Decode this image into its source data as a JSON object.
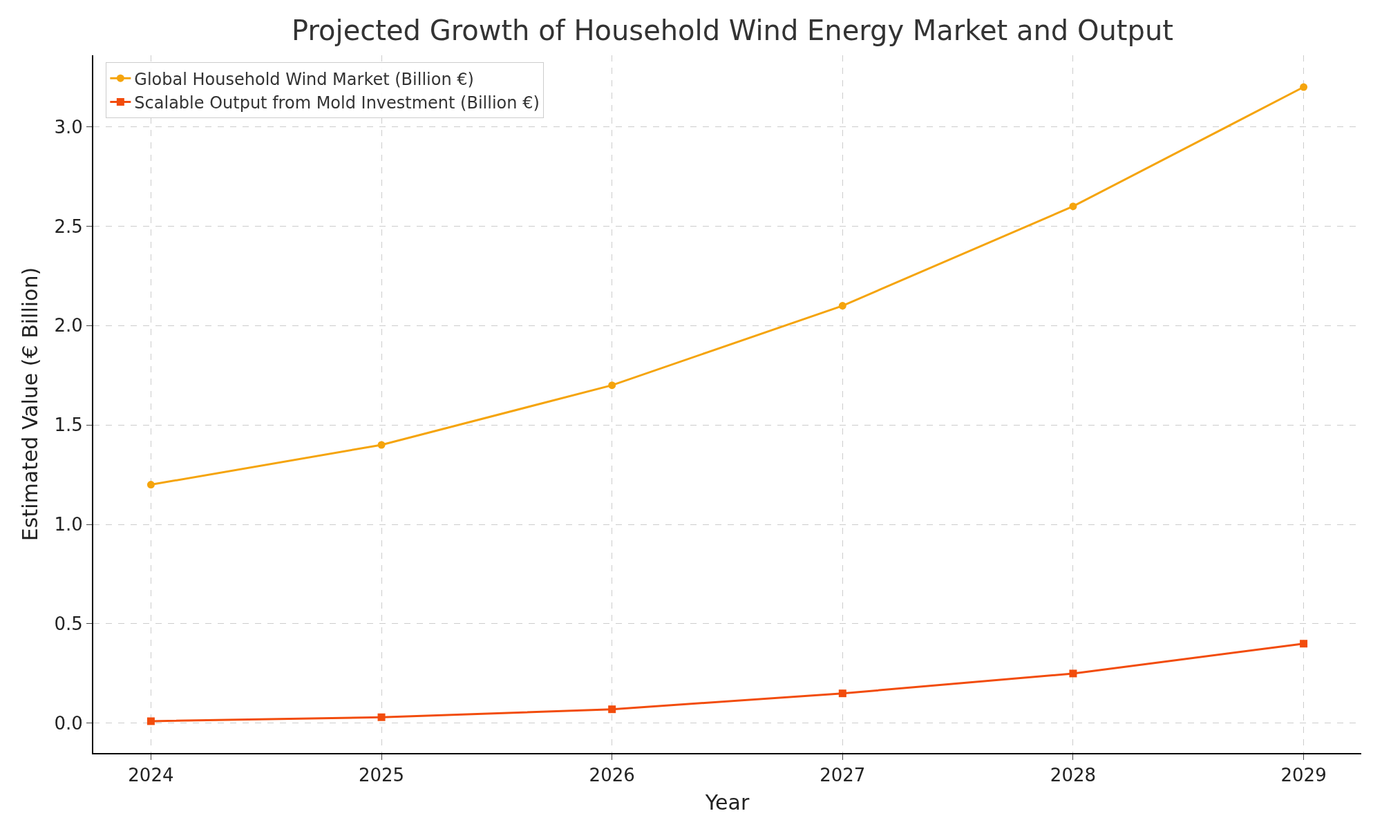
{
  "chart_data": {
    "type": "line",
    "title": "Projected Growth of Household Wind Energy Market and Output",
    "xlabel": "Year",
    "ylabel": "Estimated Value (€ Billion)",
    "x": [
      2024,
      2025,
      2026,
      2027,
      2028,
      2029
    ],
    "series": [
      {
        "name": "Global Household Wind Market (Billion €)",
        "color": "#f5a40c",
        "values": [
          1.2,
          1.4,
          1.7,
          2.1,
          2.6,
          3.2
        ],
        "marker": "circle"
      },
      {
        "name": "Scalable Output from Mold Investment (Billion €)",
        "color": "#f24c0c",
        "values": [
          0.01,
          0.03,
          0.07,
          0.15,
          0.25,
          0.4
        ],
        "marker": "square"
      }
    ],
    "xlim": [
      2023.75,
      2029.25
    ],
    "xticks": [
      2024,
      2025,
      2026,
      2027,
      2028,
      2029
    ],
    "ylim": [
      -0.15,
      3.36
    ],
    "yticks": [
      {
        "value": 0,
        "label": "0.0"
      },
      0.5,
      {
        "value": 1,
        "label": "1.0"
      },
      1.5,
      {
        "value": 2,
        "label": "2.0"
      },
      2.5,
      {
        "value": 3,
        "label": "3.0"
      }
    ],
    "grid": true,
    "legend": "top left",
    "line_style": "solid"
  }
}
